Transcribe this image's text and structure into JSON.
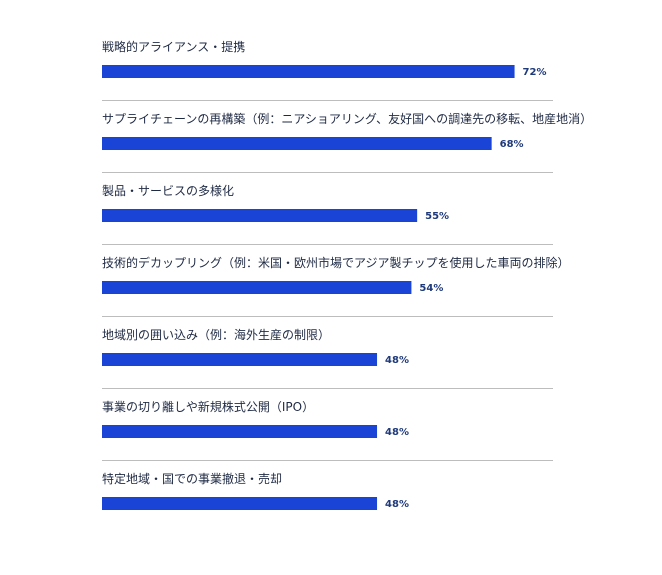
{
  "chart_data": {
    "type": "bar",
    "orientation": "horizontal",
    "categories": [
      "戦略的アライアンス・提携",
      "サプライチェーンの再構築（例：ニアショアリング、友好国への調達先の移転、地産地消）",
      "製品・サービスの多様化",
      "技術的デカップリング（例：米国・欧州市場でアジア製チップを使用した車両の排除）",
      "地域別の囲い込み（例：海外生産の制限）",
      "事業の切り離しや新規株式公開（IPO）",
      "特定地域・国での事業撤退・売却"
    ],
    "values": [
      72,
      68,
      55,
      54,
      48,
      48,
      48
    ],
    "value_labels": [
      "72%",
      "68%",
      "55%",
      "54%",
      "48%",
      "48%",
      "48%"
    ],
    "unit": "%",
    "xlim": [
      0,
      100
    ],
    "bar_color": "#1a44d6",
    "grid": false,
    "legend": "none"
  }
}
